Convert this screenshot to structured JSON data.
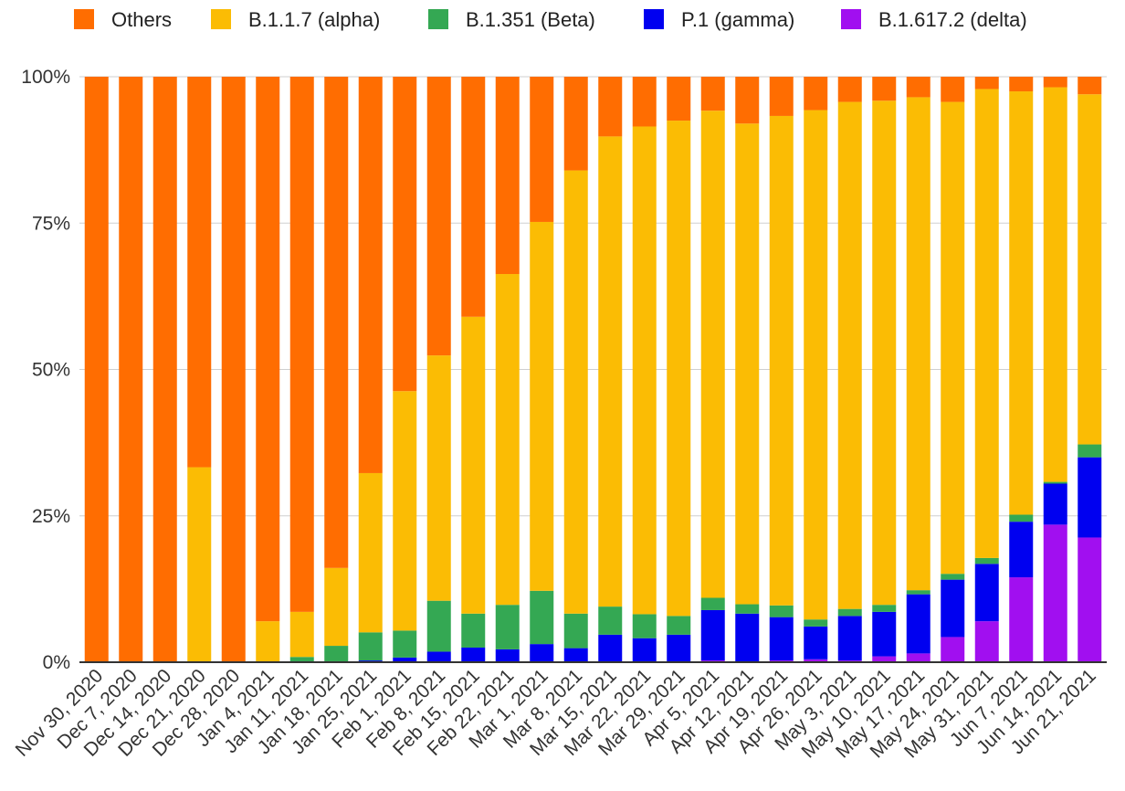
{
  "chart_data": {
    "type": "bar",
    "stacked": true,
    "title": "",
    "xlabel": "",
    "ylabel": "",
    "ylim": [
      0,
      1
    ],
    "yticks": [
      {
        "value": 0,
        "label": "0%"
      },
      {
        "value": 0.25,
        "label": "25%"
      },
      {
        "value": 0.5,
        "label": "50%"
      },
      {
        "value": 0.75,
        "label": "75%"
      },
      {
        "value": 1,
        "label": "100%"
      }
    ],
    "legend_position": "top",
    "grid": true,
    "categories": [
      "Nov 30, 2020",
      "Dec 7, 2020",
      "Dec 14, 2020",
      "Dec 21, 2020",
      "Dec 28, 2020",
      "Jan 4, 2021",
      "Jan 11, 2021",
      "Jan 18, 2021",
      "Jan 25, 2021",
      "Feb 1, 2021",
      "Feb 8, 2021",
      "Feb 15, 2021",
      "Feb 22, 2021",
      "Mar 1, 2021",
      "Mar 8, 2021",
      "Mar 15, 2021",
      "Mar 22, 2021",
      "Mar 29, 2021",
      "Apr 5, 2021",
      "Apr 12, 2021",
      "Apr 19, 2021",
      "Apr 26, 2021",
      "May 3, 2021",
      "May 10, 2021",
      "May 17, 2021",
      "May 24, 2021",
      "May 31, 2021",
      "Jun 7, 2021",
      "Jun 14, 2021",
      "Jun 21, 2021"
    ],
    "series": [
      {
        "name": "B.1.617.2 (delta)",
        "color": "#a10ff0",
        "values": [
          0,
          0,
          0,
          0,
          0,
          0,
          0,
          0,
          0,
          0,
          0,
          0,
          0,
          0,
          0,
          0,
          0,
          0,
          0.003,
          0,
          0.003,
          0.005,
          0.003,
          0.01,
          0.015,
          0.043,
          0.07,
          0.145,
          0.235,
          0.213
        ]
      },
      {
        "name": "P.1 (gamma)",
        "color": "#0000f0",
        "values": [
          0,
          0,
          0,
          0,
          0,
          0,
          0,
          0,
          0.003,
          0.008,
          0.018,
          0.025,
          0.022,
          0.031,
          0.024,
          0.047,
          0.041,
          0.047,
          0.086,
          0.083,
          0.074,
          0.056,
          0.076,
          0.076,
          0.101,
          0.098,
          0.098,
          0.095,
          0.07,
          0.137
        ]
      },
      {
        "name": "B.1.351 (Beta)",
        "color": "#34a853",
        "values": [
          0,
          0,
          0,
          0,
          0,
          0,
          0.009,
          0.028,
          0.048,
          0.046,
          0.087,
          0.058,
          0.076,
          0.091,
          0.059,
          0.048,
          0.041,
          0.032,
          0.021,
          0.016,
          0.02,
          0.012,
          0.012,
          0.012,
          0.007,
          0.01,
          0.01,
          0.012,
          0.003,
          0.022
        ]
      },
      {
        "name": "B.1.1.7 (alpha)",
        "color": "#fbbc04",
        "values": [
          0,
          0,
          0,
          0.333,
          0,
          0.07,
          0.077,
          0.133,
          0.272,
          0.409,
          0.419,
          0.507,
          0.565,
          0.63,
          0.757,
          0.803,
          0.833,
          0.846,
          0.832,
          0.821,
          0.836,
          0.87,
          0.866,
          0.861,
          0.842,
          0.806,
          0.801,
          0.723,
          0.674,
          0.598
        ]
      },
      {
        "name": "Others",
        "color": "#ff6d01",
        "values": [
          1,
          1,
          1,
          0.667,
          1,
          0.93,
          0.914,
          0.839,
          0.677,
          0.537,
          0.476,
          0.41,
          0.337,
          0.248,
          0.16,
          0.102,
          0.085,
          0.075,
          0.058,
          0.08,
          0.067,
          0.057,
          0.043,
          0.041,
          0.035,
          0.043,
          0.021,
          0.025,
          0.018,
          0.03
        ]
      }
    ],
    "legend_order": [
      "Others",
      "B.1.1.7 (alpha)",
      "B.1.351 (Beta)",
      "P.1 (gamma)",
      "B.1.617.2 (delta)"
    ]
  }
}
